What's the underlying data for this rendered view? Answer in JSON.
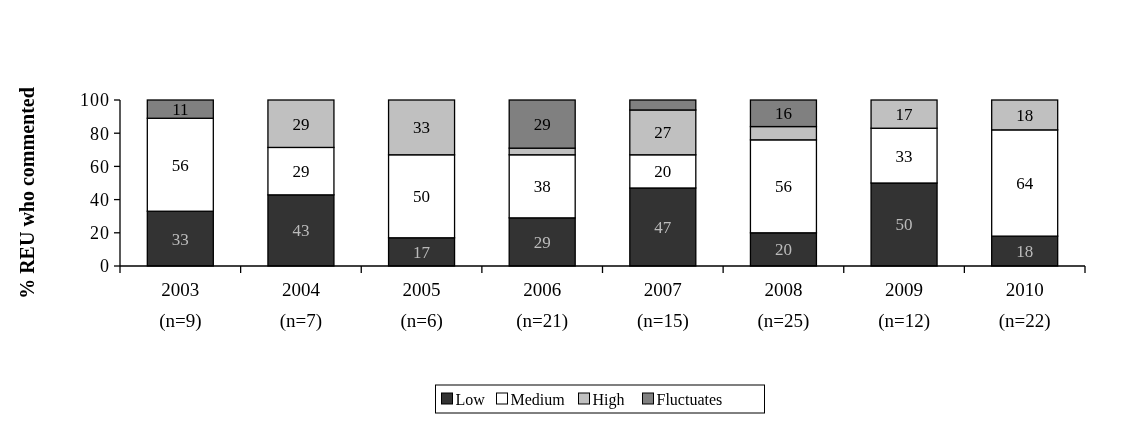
{
  "chart_data": {
    "type": "bar",
    "stacked": true,
    "ylabel": "% REU who commented",
    "categories": [
      "2003\n(n=9)",
      "2004\n(n=7)",
      "2005\n(n=6)",
      "2006\n(n=21)",
      "2007\n(n=15)",
      "2008\n(n=25)",
      "2009\n(n=12)",
      "2010\n(n=22)"
    ],
    "ylim": [
      0,
      100
    ],
    "yticks": [
      0,
      20,
      40,
      60,
      80,
      100
    ],
    "grid": false,
    "legend": "bottom",
    "series": [
      {
        "name": "Low",
        "color": "#333333",
        "values": [
          33,
          42.86,
          17,
          29,
          47,
          20,
          50,
          18
        ],
        "value_labels": [
          "33",
          "43",
          "17",
          "29",
          "47",
          "20",
          "50",
          "18"
        ]
      },
      {
        "name": "Medium",
        "color": "#ffffff",
        "values": [
          56,
          28.57,
          50,
          38,
          20,
          56,
          33,
          64
        ],
        "value_labels": [
          "56",
          "29",
          "50",
          "38",
          "20",
          "56",
          "33",
          "64"
        ]
      },
      {
        "name": "High",
        "color": "#c0c0c0",
        "values": [
          null,
          28.57,
          33,
          4,
          27,
          8,
          17,
          18
        ],
        "value_labels": [
          null,
          "29",
          "33",
          null,
          "27",
          null,
          "17",
          "18"
        ]
      },
      {
        "name": "Fluctuates",
        "color": "#808080",
        "values": [
          11,
          null,
          null,
          29,
          6,
          16,
          null,
          null
        ],
        "value_labels": [
          "11",
          null,
          null,
          "29",
          null,
          "16",
          null,
          null
        ]
      }
    ]
  }
}
